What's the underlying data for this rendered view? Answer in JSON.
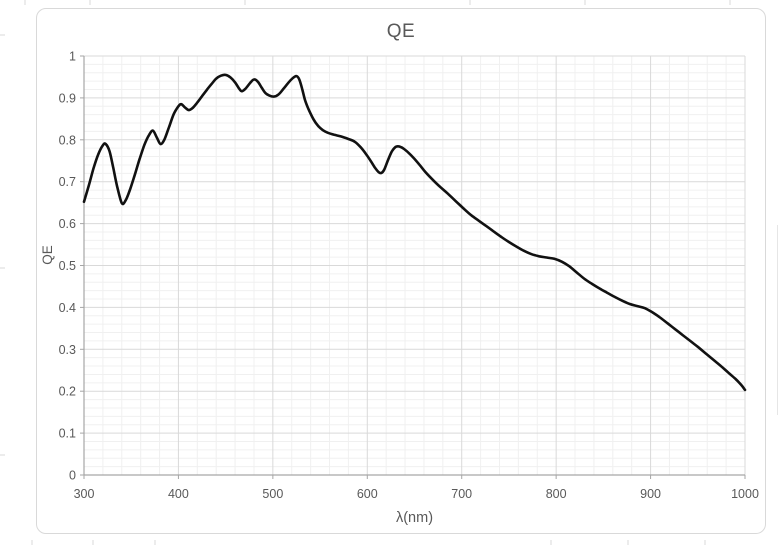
{
  "page": {
    "background": "#ffffff"
  },
  "chart_data": {
    "type": "line",
    "title": "QE",
    "xlabel": "λ(nm)",
    "ylabel": "QE",
    "xlim": [
      300,
      1000
    ],
    "ylim": [
      0,
      1
    ],
    "x_major_step": 100,
    "x_minor_step": 20,
    "y_major_step": 0.1,
    "y_minor_step": 0.02,
    "x_tick_labels": [
      "300",
      "400",
      "500",
      "600",
      "700",
      "800",
      "900",
      "1000"
    ],
    "y_tick_labels": [
      "0",
      "0.1",
      "0.2",
      "0.3",
      "0.4",
      "0.5",
      "0.6",
      "0.7",
      "0.8",
      "0.9",
      "1"
    ],
    "grid": "major and minor gridlines on both axes",
    "legend": "none",
    "colors": {
      "curve": "#111111",
      "major_grid": "#d9d9d9",
      "minor_grid": "#f0f0f0",
      "axis": "#a6a6a6",
      "tick_text": "#595959",
      "chart_border": "#d9d9d9"
    },
    "series": [
      {
        "name": "QE",
        "x": [
          300,
          305,
          310,
          315,
          320,
          323,
          327,
          331,
          335,
          340,
          344,
          349,
          354,
          359,
          364,
          369,
          373,
          377,
          381,
          385,
          390,
          395,
          400,
          403,
          407,
          411,
          415,
          420,
          425,
          430,
          435,
          440,
          445,
          450,
          455,
          460,
          464,
          467,
          471,
          476,
          480,
          484,
          488,
          492,
          496,
          501,
          506,
          511,
          516,
          521,
          525,
          528,
          531,
          534,
          538,
          543,
          548,
          553,
          558,
          565,
          572,
          580,
          587,
          593,
          599,
          604,
          608,
          612,
          615,
          618,
          622,
          626,
          630,
          634,
          639,
          646,
          654,
          662,
          670,
          678,
          686,
          694,
          702,
          710,
          718,
          726,
          734,
          742,
          750,
          758,
          766,
          774,
          782,
          790,
          798,
          806,
          814,
          822,
          830,
          838,
          846,
          854,
          862,
          870,
          878,
          886,
          894,
          902,
          910,
          918,
          926,
          934,
          942,
          950,
          958,
          966,
          974,
          982,
          990,
          996,
          1000
        ],
        "y": [
          0.652,
          0.69,
          0.731,
          0.765,
          0.787,
          0.79,
          0.773,
          0.733,
          0.69,
          0.649,
          0.655,
          0.683,
          0.718,
          0.755,
          0.788,
          0.812,
          0.822,
          0.806,
          0.79,
          0.8,
          0.83,
          0.861,
          0.88,
          0.885,
          0.877,
          0.871,
          0.876,
          0.889,
          0.904,
          0.919,
          0.933,
          0.946,
          0.953,
          0.955,
          0.949,
          0.937,
          0.923,
          0.916,
          0.922,
          0.936,
          0.944,
          0.939,
          0.925,
          0.912,
          0.906,
          0.903,
          0.908,
          0.921,
          0.935,
          0.947,
          0.952,
          0.944,
          0.922,
          0.895,
          0.872,
          0.849,
          0.833,
          0.823,
          0.817,
          0.812,
          0.808,
          0.802,
          0.795,
          0.782,
          0.765,
          0.748,
          0.734,
          0.723,
          0.721,
          0.729,
          0.752,
          0.772,
          0.783,
          0.784,
          0.778,
          0.764,
          0.744,
          0.722,
          0.703,
          0.686,
          0.67,
          0.653,
          0.636,
          0.62,
          0.607,
          0.594,
          0.581,
          0.568,
          0.556,
          0.545,
          0.535,
          0.527,
          0.522,
          0.519,
          0.516,
          0.509,
          0.498,
          0.483,
          0.468,
          0.456,
          0.445,
          0.435,
          0.425,
          0.416,
          0.408,
          0.403,
          0.398,
          0.388,
          0.376,
          0.362,
          0.348,
          0.334,
          0.32,
          0.306,
          0.291,
          0.276,
          0.261,
          0.245,
          0.229,
          0.215,
          0.203
        ]
      }
    ]
  }
}
